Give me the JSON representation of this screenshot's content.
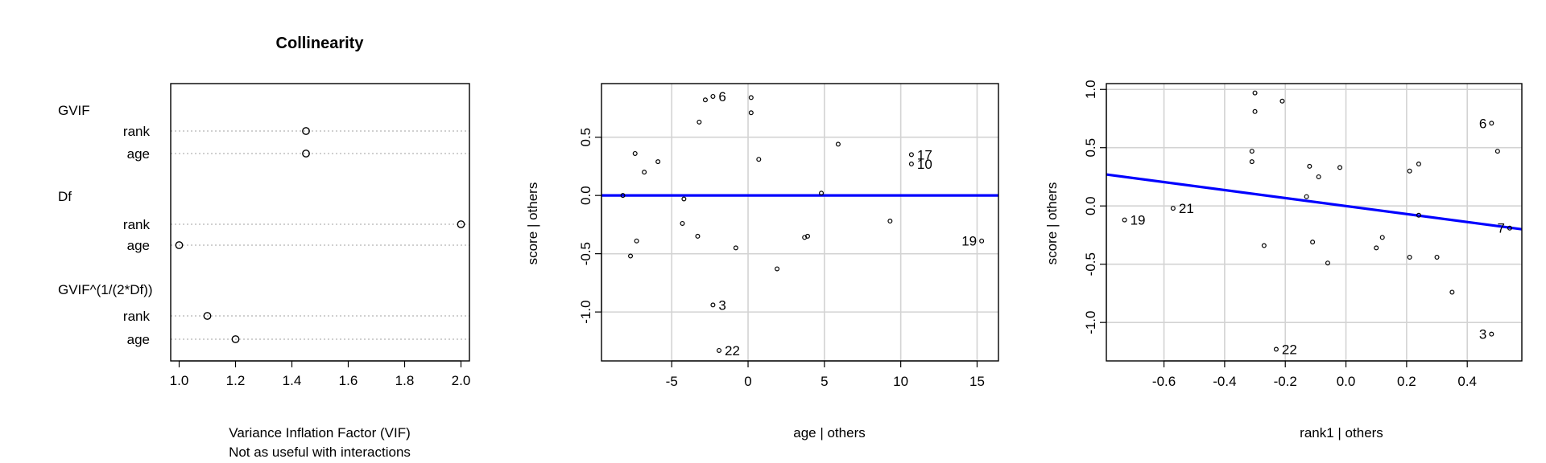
{
  "chart_data": [
    {
      "type": "dotchart",
      "title": "Collinearity",
      "xlabel": "Variance Inflation Factor (VIF)",
      "xlabel2": "Not as useful with interactions",
      "xlim": [
        0.97,
        2.03
      ],
      "xticks": [
        "1.0",
        "1.2",
        "1.4",
        "1.6",
        "1.8",
        "2.0"
      ],
      "tick_values": [
        1.0,
        1.2,
        1.4,
        1.6,
        1.8,
        2.0
      ],
      "groups": [
        {
          "name": "GVIF",
          "items": [
            {
              "label": "rank",
              "value": 1.45
            },
            {
              "label": "age",
              "value": 1.45
            }
          ]
        },
        {
          "name": "Df",
          "items": [
            {
              "label": "rank",
              "value": 2.0
            },
            {
              "label": "age",
              "value": 1.0
            }
          ]
        },
        {
          "name": "GVIF^(1/(2*Df))",
          "items": [
            {
              "label": "rank",
              "value": 1.1
            },
            {
              "label": "age",
              "value": 1.2
            }
          ]
        }
      ]
    },
    {
      "type": "scatter",
      "xlabel": "age | others",
      "ylabel": "score  | others",
      "xlim": [
        -9.6,
        16.4
      ],
      "ylim": [
        -1.42,
        0.96
      ],
      "xticks": [
        "-5",
        "0",
        "5",
        "10",
        "15"
      ],
      "xtick_values": [
        -5,
        0,
        5,
        10,
        15
      ],
      "yticks": [
        "-1.0",
        "-0.5",
        "0.0",
        "0.5"
      ],
      "ytick_values": [
        -1.0,
        -0.5,
        0.0,
        0.5
      ],
      "grid": true,
      "fit_line": {
        "x": [
          -9.6,
          16.4
        ],
        "y": [
          0.0,
          0.0
        ],
        "color": "#0000ff"
      },
      "points": [
        {
          "x": -8.2,
          "y": 0.0
        },
        {
          "x": -7.7,
          "y": -0.52
        },
        {
          "x": -7.4,
          "y": 0.36
        },
        {
          "x": -7.3,
          "y": -0.39
        },
        {
          "x": -6.8,
          "y": 0.2
        },
        {
          "x": -5.9,
          "y": 0.29
        },
        {
          "x": -4.3,
          "y": -0.24
        },
        {
          "x": -4.2,
          "y": -0.03
        },
        {
          "x": -3.3,
          "y": -0.35
        },
        {
          "x": -3.2,
          "y": 0.63
        },
        {
          "x": -2.8,
          "y": 0.82
        },
        {
          "x": -2.3,
          "y": 0.85,
          "label": "6"
        },
        {
          "x": -2.3,
          "y": -0.94,
          "label": "3"
        },
        {
          "x": -1.9,
          "y": -1.33,
          "label": "22"
        },
        {
          "x": -0.8,
          "y": -0.45
        },
        {
          "x": 0.2,
          "y": 0.84
        },
        {
          "x": 0.2,
          "y": 0.71
        },
        {
          "x": 0.7,
          "y": 0.31
        },
        {
          "x": 1.9,
          "y": -0.63
        },
        {
          "x": 3.7,
          "y": -0.36
        },
        {
          "x": 3.9,
          "y": -0.35
        },
        {
          "x": 4.8,
          "y": 0.02
        },
        {
          "x": 5.9,
          "y": 0.44
        },
        {
          "x": 9.3,
          "y": -0.22
        },
        {
          "x": 10.7,
          "y": 0.35,
          "label": "17"
        },
        {
          "x": 10.7,
          "y": 0.27,
          "label": "10"
        },
        {
          "x": 15.3,
          "y": -0.39,
          "label": "19"
        }
      ]
    },
    {
      "type": "scatter",
      "xlabel": "rank1 | others",
      "ylabel": "score  | others",
      "xlim": [
        -0.79,
        0.58
      ],
      "ylim": [
        -1.33,
        1.05
      ],
      "xticks": [
        "-0.6",
        "-0.4",
        "-0.2",
        "0.0",
        "0.2",
        "0.4"
      ],
      "xtick_values": [
        -0.6,
        -0.4,
        -0.2,
        0.0,
        0.2,
        0.4
      ],
      "yticks": [
        "-1.0",
        "-0.5",
        "0.0",
        "0.5",
        "1.0"
      ],
      "ytick_values": [
        -1.0,
        -0.5,
        0.0,
        0.5,
        1.0
      ],
      "grid": true,
      "fit_line": {
        "x": [
          -0.79,
          0.58
        ],
        "y": [
          0.27,
          -0.2
        ],
        "color": "#0000ff"
      },
      "points": [
        {
          "x": -0.73,
          "y": -0.12,
          "label": "19"
        },
        {
          "x": -0.57,
          "y": -0.02,
          "label": "21"
        },
        {
          "x": -0.3,
          "y": 0.97
        },
        {
          "x": -0.3,
          "y": 0.81
        },
        {
          "x": -0.31,
          "y": 0.47
        },
        {
          "x": -0.31,
          "y": 0.38
        },
        {
          "x": -0.27,
          "y": -0.34
        },
        {
          "x": -0.21,
          "y": 0.9
        },
        {
          "x": -0.23,
          "y": -1.23,
          "label": "22"
        },
        {
          "x": -0.13,
          "y": 0.08
        },
        {
          "x": -0.12,
          "y": 0.34
        },
        {
          "x": -0.11,
          "y": -0.31
        },
        {
          "x": -0.09,
          "y": 0.25
        },
        {
          "x": -0.06,
          "y": -0.49
        },
        {
          "x": -0.02,
          "y": 0.33
        },
        {
          "x": 0.1,
          "y": -0.36
        },
        {
          "x": 0.12,
          "y": -0.27
        },
        {
          "x": 0.21,
          "y": 0.3
        },
        {
          "x": 0.21,
          "y": -0.44
        },
        {
          "x": 0.24,
          "y": 0.36
        },
        {
          "x": 0.24,
          "y": -0.08
        },
        {
          "x": 0.3,
          "y": -0.44
        },
        {
          "x": 0.35,
          "y": -0.74
        },
        {
          "x": 0.48,
          "y": 0.71,
          "label": "6"
        },
        {
          "x": 0.48,
          "y": -1.1,
          "label": "3"
        },
        {
          "x": 0.5,
          "y": 0.47
        },
        {
          "x": 0.54,
          "y": -0.19,
          "label": "7"
        }
      ]
    }
  ]
}
